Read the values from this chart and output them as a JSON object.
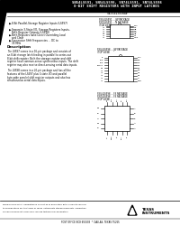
{
  "title_line1": "SN54LS591, SN54LS598, SN74LS591, SN74LS598",
  "title_line2": "8-BIT SHIFT REGISTERS WITH INPUT LATCHES",
  "part_number": "SNJ54LS598W",
  "bg_color": "#ffffff",
  "bullet_points": [
    "8-Bit Parallel-Storage Register Inputs (LS597)",
    "Separate 3-State I/O, Storage Registers Inputs, Both Register Outputs (LS598)",
    "Both Registers have Direct Overriding Load and Clear",
    "Successive Shift Frequencies ... DC to 35 MHz"
  ],
  "section_description": "Description",
  "desc1_lines": [
    "The LS597 comes in a 16-pin package and consists of",
    "an 8-bit storage latch feeding in parallel to series-out",
    "8-bit shift register. Both the storage register and shift",
    "register have common-sense synchronous inputs. The shift",
    "register may also receive direct-sensing serial data inputs."
  ],
  "desc2_lines": [
    "The LS598 comes in a 20-pin package and has all the",
    "features of the LS597 plus 3-state I/O and parallel",
    "byte-wide parallel shift register outputs and also has",
    "simultaneous serial data inputs."
  ],
  "pkg1_label1": "SN54LS591 ... JW PACKAGE",
  "pkg1_label2": "SN74LS591 ... N PACKAGE",
  "pkg1_label3": "(TOP VIEW)",
  "pkg1_left_pins": [
    "A1",
    "A2",
    "A3",
    "A4",
    "A5",
    "A6",
    "A7",
    "A8"
  ],
  "pkg1_right_pins": [
    "VCC",
    "QA",
    "QB",
    "QC",
    "QD",
    "QE",
    "QF",
    "GND"
  ],
  "pkg2_label1": "SN54LS598 ... JW PACKAGE",
  "pkg2_label2": "(TOP VIEW)",
  "pkg2_left_pins": [
    "SI",
    "SCK",
    "RCK",
    "SRCLR",
    "OE",
    "A1",
    "A2",
    "A3",
    "A4",
    "A5"
  ],
  "pkg2_right_pins": [
    "VCC",
    "QH",
    "QG",
    "QF",
    "QE",
    "QD",
    "QC",
    "QB",
    "QA",
    "GND"
  ],
  "pkg3_label1": "SN54LS598 ... FK PACKAGE",
  "pkg3_label2": "SN74LS598 ... FK PACKAGE",
  "pkg3_label3": "(TOP VIEW)",
  "pkg3_top_pins": [
    "QH",
    "SQH",
    "VCC",
    "A8",
    "RCK"
  ],
  "pkg3_bot_pins": [
    "QA",
    "GND",
    "A1",
    "SCK",
    "SI"
  ],
  "pkg3_left_pins": [
    "QG",
    "QF",
    "QE",
    "QD",
    "QC"
  ],
  "pkg3_right_pins": [
    "A7",
    "A6",
    "A5",
    "A4",
    "A3"
  ],
  "footer_text1": "PRODUCTION DATA information is current as of publication date. Products conform",
  "footer_text2": "to specifications per the terms of Texas Instruments standard warranty. Production",
  "footer_text3": "processing does not necessarily include testing of all parameters.",
  "ti_logo": "TEXAS\nINSTRUMENTS",
  "bottom_text": "POST OFFICE BOX 655303  *  DALLAS, TEXAS 75265"
}
